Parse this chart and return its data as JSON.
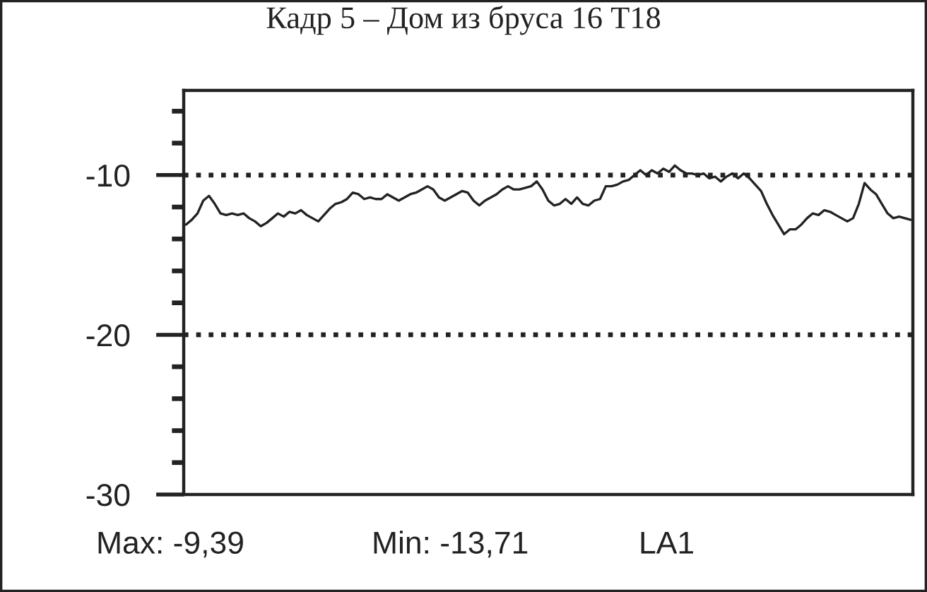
{
  "chart_data": {
    "type": "line",
    "title": "Кадр 5 – Дом из бруса 16 Т18",
    "categories": [
      null,
      null,
      null,
      null,
      null,
      null,
      null,
      null,
      null,
      null,
      null,
      null,
      null,
      null,
      null,
      null,
      null,
      null,
      null,
      null,
      null,
      null,
      null,
      null,
      null,
      null,
      null,
      null,
      null,
      null,
      null,
      null,
      null,
      null,
      null,
      null,
      null,
      null,
      null,
      null,
      null,
      null,
      null,
      null,
      null,
      null,
      null,
      null,
      null,
      null,
      null,
      null,
      null,
      null,
      null,
      null,
      null,
      null,
      null,
      null,
      null,
      null,
      null,
      null,
      null,
      null,
      null,
      null,
      null,
      null,
      null,
      null,
      null,
      null,
      null,
      null,
      null,
      null,
      null,
      null,
      null,
      null,
      null,
      null,
      null,
      null,
      null,
      null,
      null,
      null,
      null,
      null,
      null,
      null,
      null,
      null,
      null,
      null,
      null,
      null,
      null,
      null,
      null,
      null,
      null,
      null,
      null,
      null,
      null,
      null,
      null,
      null,
      null,
      null,
      null,
      null,
      null,
      null,
      null,
      null,
      null,
      null,
      null,
      null,
      null,
      null,
      null
    ],
    "color": "#222222",
    "values": [
      -13.1,
      -12.8,
      -12.4,
      -11.6,
      -11.3,
      -11.8,
      -12.4,
      -12.5,
      -12.4,
      -12.5,
      -12.4,
      -12.7,
      -12.9,
      -13.2,
      -13.0,
      -12.7,
      -12.4,
      -12.6,
      -12.3,
      -12.4,
      -12.2,
      -12.5,
      -12.7,
      -12.9,
      -12.5,
      -12.1,
      -11.8,
      -11.7,
      -11.5,
      -11.1,
      -11.2,
      -11.5,
      -11.4,
      -11.5,
      -11.5,
      -11.2,
      -11.4,
      -11.6,
      -11.4,
      -11.2,
      -11.1,
      -10.9,
      -10.7,
      -10.9,
      -11.4,
      -11.6,
      -11.4,
      -11.2,
      -11.0,
      -11.1,
      -11.6,
      -11.9,
      -11.6,
      -11.4,
      -11.2,
      -10.9,
      -10.7,
      -10.9,
      -10.9,
      -10.8,
      -10.7,
      -10.4,
      -10.9,
      -11.6,
      -11.9,
      -11.8,
      -11.5,
      -11.8,
      -11.4,
      -11.8,
      -11.9,
      -11.6,
      -11.5,
      -10.7,
      -10.7,
      -10.6,
      -10.4,
      -10.3,
      -10.0,
      -9.7,
      -10.0,
      -9.7,
      -9.9,
      -9.6,
      -9.8,
      -9.4,
      -9.7,
      -9.9,
      -9.9,
      -10.0,
      -9.9,
      -10.2,
      -10.1,
      -10.4,
      -10.1,
      -9.9,
      -10.2,
      -9.9,
      -10.2,
      -10.6,
      -11.0,
      -11.8,
      -12.5,
      -13.1,
      -13.7,
      -13.4,
      -13.4,
      -13.1,
      -12.7,
      -12.4,
      -12.5,
      -12.2,
      -12.3,
      -12.5,
      -12.7,
      -12.9,
      -12.7,
      -11.8,
      -10.5,
      -10.9,
      -11.2,
      -11.8,
      -12.4,
      -12.7,
      -12.6,
      -12.7,
      -12.8
    ],
    "ylim": [
      -30,
      -4.7
    ],
    "yticks": [
      -30,
      {
        "value": -28,
        "label": null
      },
      {
        "value": -26,
        "label": null
      },
      {
        "value": -24,
        "label": null
      },
      {
        "value": -22,
        "label": null
      },
      -20,
      {
        "value": -18,
        "label": null
      },
      {
        "value": -16,
        "label": null
      },
      {
        "value": -14,
        "label": null
      },
      {
        "value": -12,
        "label": null
      },
      -10,
      {
        "value": -8,
        "label": null
      },
      {
        "value": -6,
        "label": null
      }
    ],
    "tick_labels": "y",
    "ref_lines": [
      {
        "axis": "y",
        "value": -10,
        "color": "#222222",
        "line_style": "dotted"
      },
      {
        "axis": "y",
        "value": -20,
        "color": "#222222",
        "line_style": "dotted"
      }
    ],
    "annotations": [
      "Max: -9,39",
      "Min: -13,71",
      "LA1"
    ]
  }
}
